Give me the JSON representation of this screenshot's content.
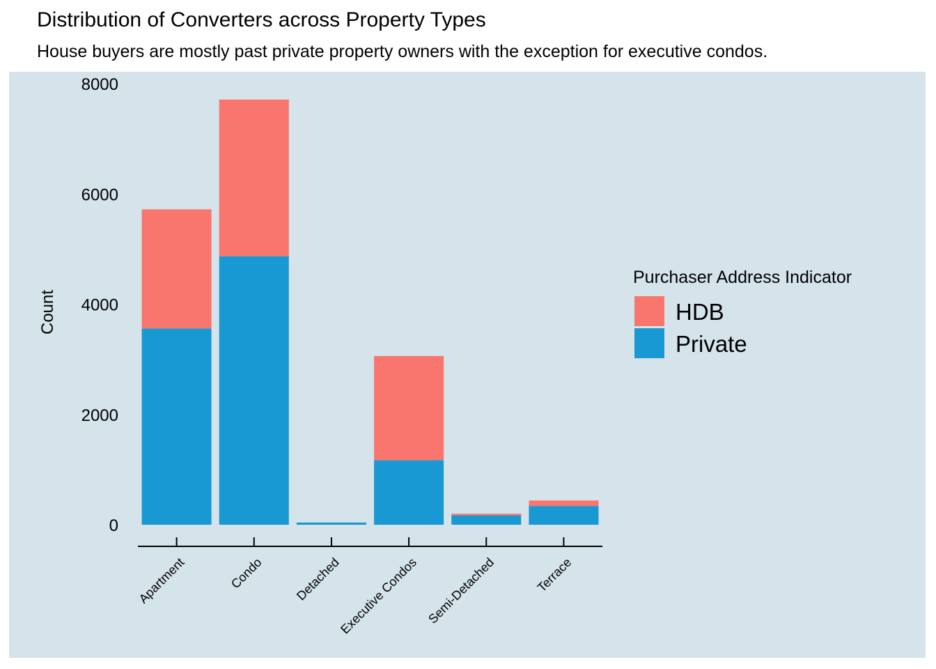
{
  "chart_data": {
    "type": "bar",
    "stacked": true,
    "title": "Distribution of Converters across Property Types",
    "subtitle": "House buyers are mostly past private property owners with the exception for executive condos.",
    "xlabel": "",
    "ylabel": "Count",
    "categories": [
      "Apartment",
      "Condo",
      "Detached",
      "Executive Condos",
      "Semi-Detached",
      "Terrace"
    ],
    "series": [
      {
        "name": "HDB",
        "values": [
          2160,
          2840,
          0,
          1890,
          30,
          100
        ],
        "color": "#f8766d"
      },
      {
        "name": "Private",
        "values": [
          3560,
          4870,
          40,
          1170,
          170,
          340
        ],
        "color": "#1999d3"
      }
    ],
    "ylim": [
      0,
      8000
    ],
    "yticks": [
      0,
      2000,
      4000,
      6000,
      8000
    ],
    "legend_title": "Purchaser Address Indicator",
    "legend_position": "right",
    "grid": false,
    "background": "#d5e3ea"
  }
}
